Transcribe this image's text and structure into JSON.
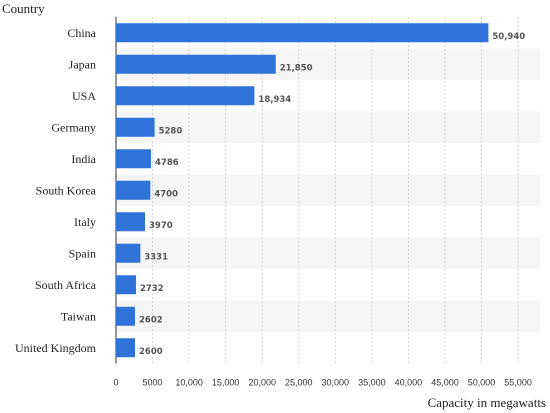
{
  "chart_data": {
    "type": "bar",
    "orientation": "horizontal",
    "title": "",
    "ylabel": "Country",
    "xlabel": "Capacity in megawatts",
    "categories": [
      "China",
      "Japan",
      "USA",
      "Germany",
      "India",
      "South Korea",
      "Italy",
      "Spain",
      "South Africa",
      "Taiwan",
      "United Kingdom"
    ],
    "values": [
      50940,
      21850,
      18934,
      5280,
      4786,
      4700,
      3970,
      3331,
      2732,
      2602,
      2600
    ],
    "value_labels": [
      "50,940",
      "21,850",
      "18,934",
      "5280",
      "4786",
      "4700",
      "3970",
      "3331",
      "2732",
      "2602",
      "2600"
    ],
    "xlim": [
      0,
      58000
    ],
    "x_ticks": [
      0,
      5000,
      10000,
      15000,
      20000,
      25000,
      30000,
      35000,
      40000,
      45000,
      50000,
      55000
    ],
    "x_tick_labels": [
      "0",
      "5000",
      "10,000",
      "15,000",
      "20,000",
      "25,000",
      "30,000",
      "35,000",
      "40,000",
      "45,000",
      "50,000",
      "55,000"
    ],
    "grid": "vertical dashed",
    "legend": "none",
    "colors": {
      "bar": "#2f72d8",
      "band": "#f5f5f5",
      "grid": "#cccccc",
      "axis": "#333333"
    }
  }
}
